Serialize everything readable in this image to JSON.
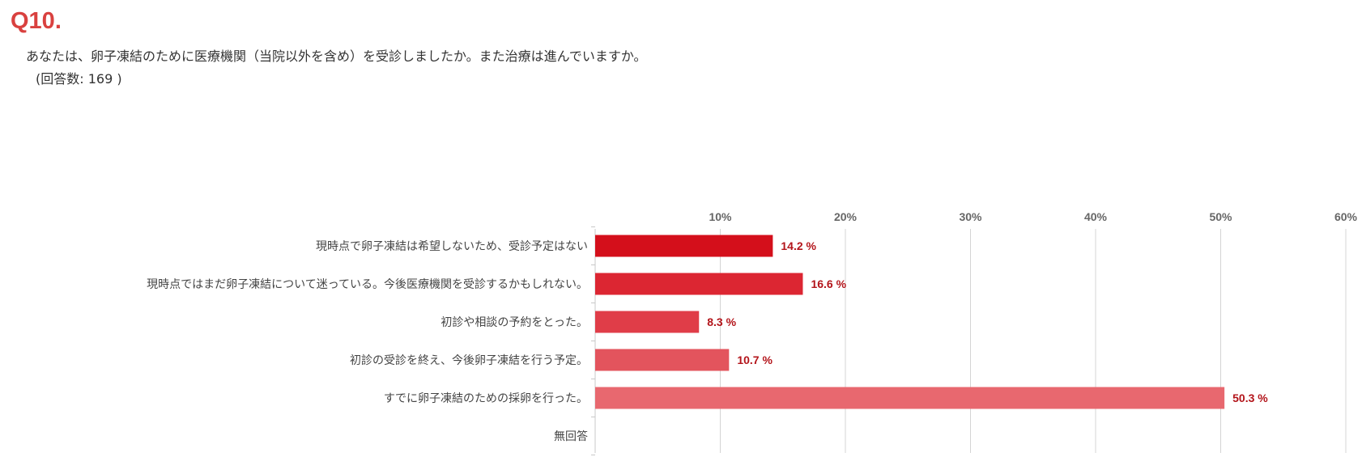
{
  "question": {
    "number": "Q10.",
    "text": "あなたは、卵子凍結のために医療機関（当院以外を含め）を受診しましたか。また治療は進んでいますか。",
    "count": "(回答数: 169 )"
  },
  "chart_data": {
    "type": "bar",
    "orientation": "horizontal",
    "categories": [
      "現時点で卵子凍結は希望しないため、受診予定はない",
      "現時点ではまだ卵子凍結について迷っている。今後医療機関を受診するかもしれない。",
      "初診や相談の予約をとった。",
      "初診の受診を終え、今後卵子凍結を行う予定。",
      "すでに卵子凍結のための採卵を行った。",
      "無回答"
    ],
    "values": [
      14.2,
      16.6,
      8.3,
      10.7,
      50.3,
      null
    ],
    "value_labels": [
      "14.2 %",
      "16.6 %",
      "8.3 %",
      "10.7 %",
      "50.3 %",
      ""
    ],
    "xlim": [
      0,
      60
    ],
    "xticks": [
      10,
      20,
      30,
      40,
      50,
      60
    ],
    "xtick_labels": [
      "10%",
      "20%",
      "30%",
      "40%",
      "50%",
      "60%"
    ],
    "axis_position": "top",
    "grid": true,
    "bar_colors": [
      "#d40f1b",
      "#dc2632",
      "#e03d48",
      "#e3545d",
      "#e8686f",
      "#ec7f85"
    ],
    "label_color": "#b3141a"
  }
}
